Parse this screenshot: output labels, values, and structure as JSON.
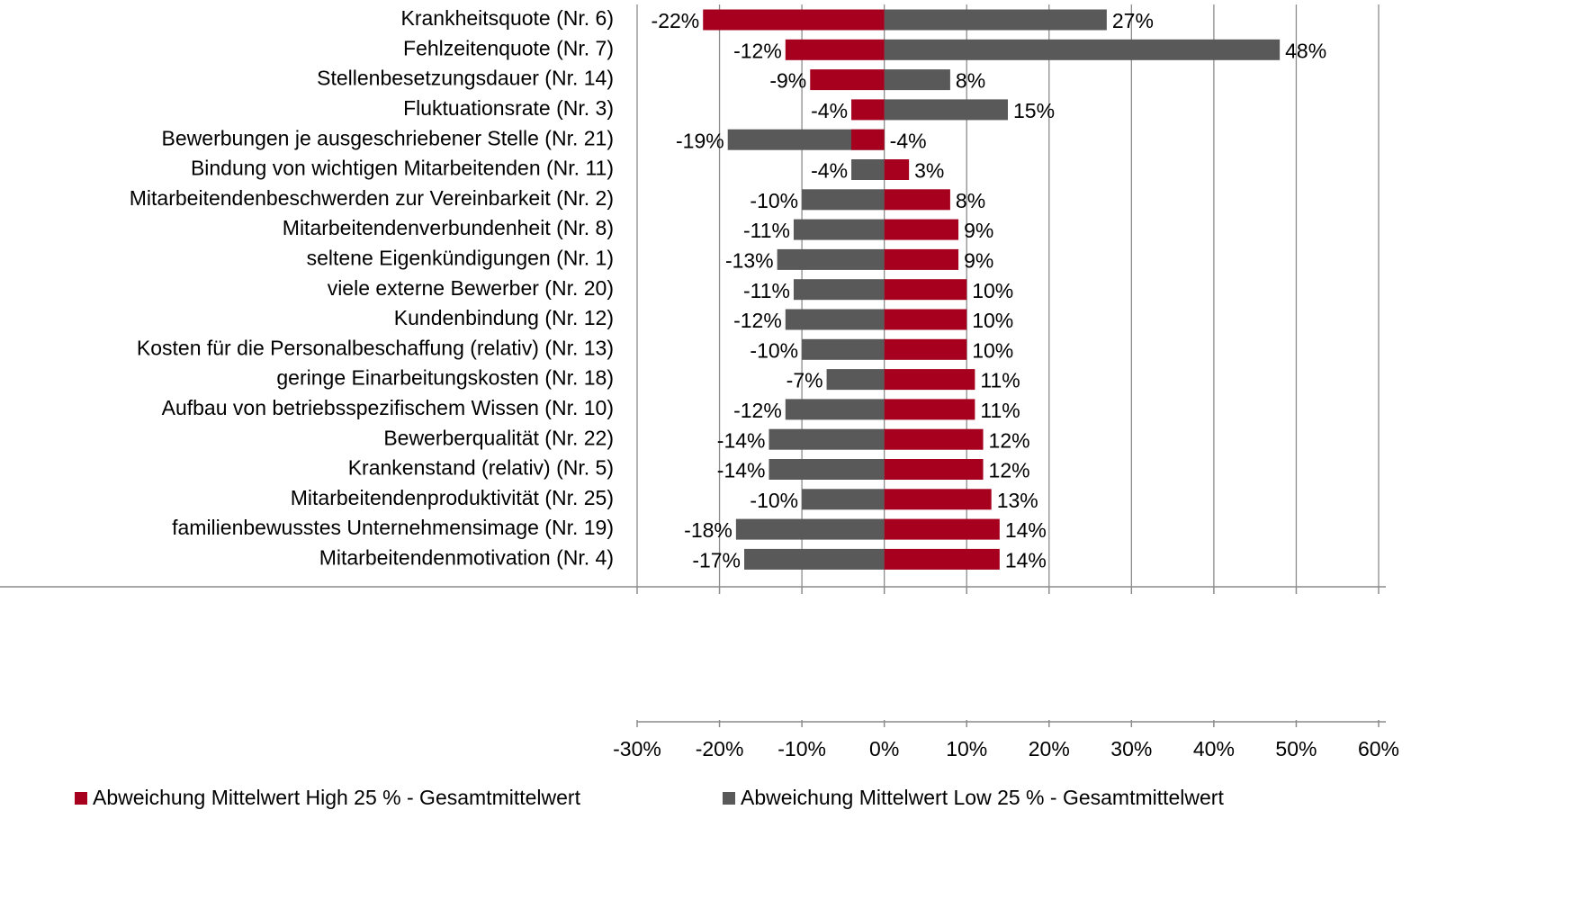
{
  "chart_data": {
    "type": "bar",
    "orientation": "horizontal",
    "categories": [
      "Krankheitsquote (Nr. 6)",
      "Fehlzeitenquote (Nr. 7)",
      "Stellenbesetzungsdauer (Nr. 14)",
      "Fluktuationsrate (Nr. 3)",
      "Bewerbungen je ausgeschriebener Stelle (Nr. 21)",
      "Bindung von wichtigen Mitarbeitenden (Nr. 11)",
      "Mitarbeitendenbeschwerden zur Vereinbarkeit (Nr. 2)",
      "Mitarbeitendenverbundenheit (Nr. 8)",
      "seltene Eigenkündigungen (Nr. 1)",
      "viele externe Bewerber (Nr. 20)",
      "Kundenbindung (Nr. 12)",
      "Kosten für die Personalbeschaffung (relativ) (Nr. 13)",
      "geringe Einarbeitungskosten (Nr. 18)",
      "Aufbau von betriebsspezifischem Wissen (Nr. 10)",
      "Bewerberqualität (Nr. 22)",
      "Krankenstand (relativ) (Nr. 5)",
      "Mitarbeitendenproduktivität (Nr. 25)",
      "familienbewusstes Unternehmensimage (Nr. 19)",
      "Mitarbeitendenmotivation (Nr. 4)"
    ],
    "series": [
      {
        "name": "Abweichung Mittelwert High 25 % - Gesamtmittelwert",
        "color": "#a6001e",
        "values": [
          -22,
          -12,
          -9,
          -4,
          -4,
          3,
          8,
          9,
          9,
          10,
          10,
          10,
          11,
          11,
          12,
          12,
          13,
          14,
          14
        ],
        "value_labels": [
          "-22%",
          "-12%",
          "-9%",
          "-4%",
          "-4%",
          "3%",
          "8%",
          "9%",
          "9%",
          "10%",
          "10%",
          "10%",
          "11%",
          "11%",
          "12%",
          "12%",
          "13%",
          "14%",
          "14%"
        ]
      },
      {
        "name": "Abweichung Mittelwert Low 25 % - Gesamtmittelwert",
        "color": "#595959",
        "values": [
          27,
          48,
          8,
          15,
          -19,
          -4,
          -10,
          -11,
          -13,
          -11,
          -12,
          -10,
          -7,
          -12,
          -14,
          -14,
          -10,
          -18,
          -17
        ],
        "value_labels": [
          "27%",
          "48%",
          "8%",
          "15%",
          "-19%",
          "-4%",
          "-10%",
          "-11%",
          "-13%",
          "-11%",
          "-12%",
          "-10%",
          "-7%",
          "-12%",
          "-14%",
          "-14%",
          "-10%",
          "-18%",
          "-17%"
        ]
      }
    ],
    "xlim": [
      -30,
      60
    ],
    "xticks": [
      {
        "value": -30,
        "label": "-30%"
      },
      {
        "value": -20,
        "label": "-20%"
      },
      {
        "value": -10,
        "label": "-10%"
      },
      {
        "value": 0,
        "label": "0%"
      },
      {
        "value": 10,
        "label": "10%"
      },
      {
        "value": 20,
        "label": "20%"
      },
      {
        "value": 30,
        "label": "30%"
      },
      {
        "value": 40,
        "label": "40%"
      },
      {
        "value": 50,
        "label": "50%"
      },
      {
        "value": 60,
        "label": "60%"
      }
    ],
    "grid": true,
    "legend": "bottom"
  }
}
